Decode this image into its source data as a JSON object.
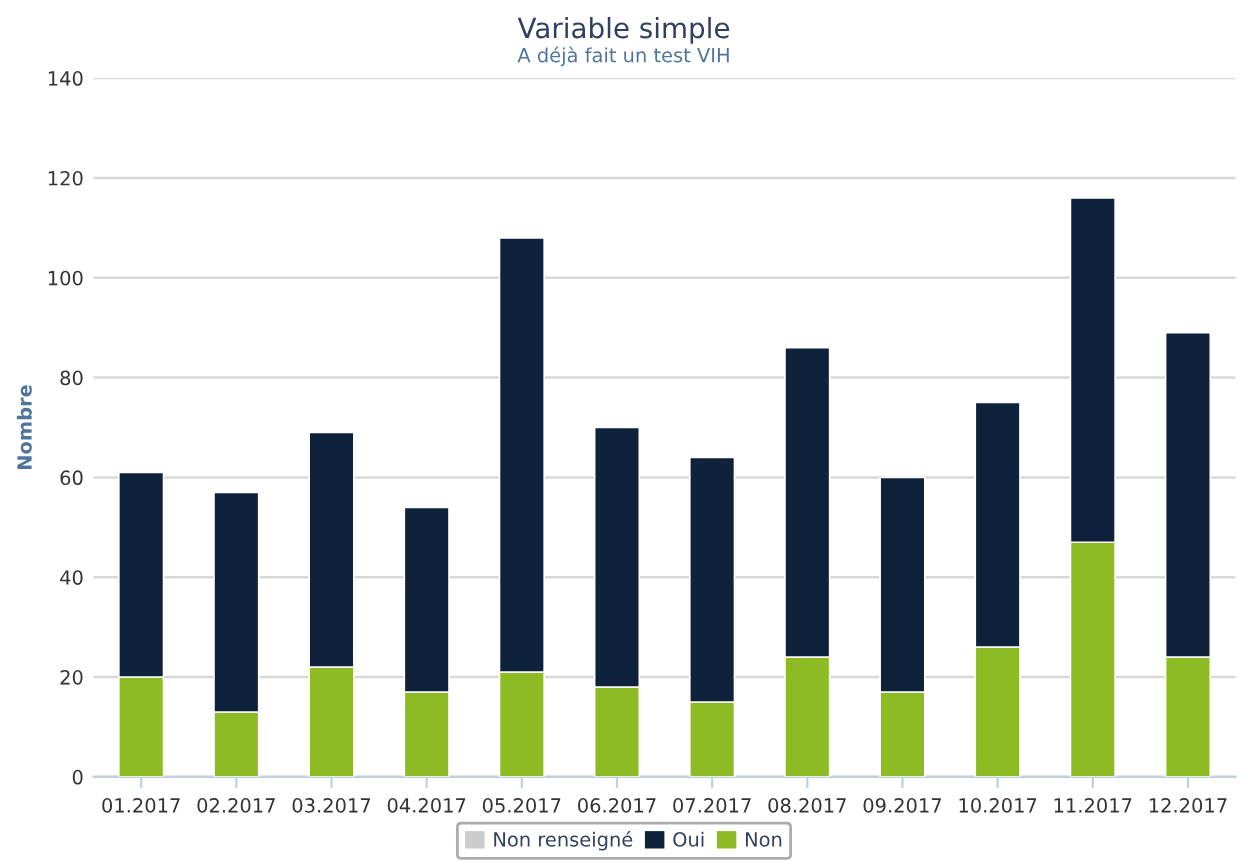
{
  "chart_data": {
    "type": "bar",
    "title": "Variable simple",
    "subtitle": "A déjà fait un test VIH",
    "ylabel": "Nombre",
    "categories": [
      "01.2017",
      "02.2017",
      "03.2017",
      "04.2017",
      "05.2017",
      "06.2017",
      "07.2017",
      "08.2017",
      "09.2017",
      "10.2017",
      "11.2017",
      "12.2017"
    ],
    "series": [
      {
        "name": "Non",
        "color": "#8cbb23",
        "values": [
          20,
          13,
          22,
          17,
          21,
          18,
          15,
          24,
          17,
          26,
          47,
          24
        ]
      },
      {
        "name": "Oui",
        "color": "#0e233b",
        "values": [
          41,
          44,
          47,
          37,
          87,
          52,
          49,
          62,
          43,
          49,
          69,
          65
        ]
      },
      {
        "name": "Non renseigné",
        "color": "#cccccc",
        "values": [
          null,
          null,
          null,
          null,
          null,
          null,
          null,
          null,
          null,
          null,
          null,
          null
        ]
      }
    ],
    "stacked": true,
    "ylim": [
      0,
      140
    ],
    "yticks": [
      0,
      20,
      40,
      60,
      80,
      100,
      120,
      140
    ],
    "grid": "y",
    "legend": "bottom"
  }
}
